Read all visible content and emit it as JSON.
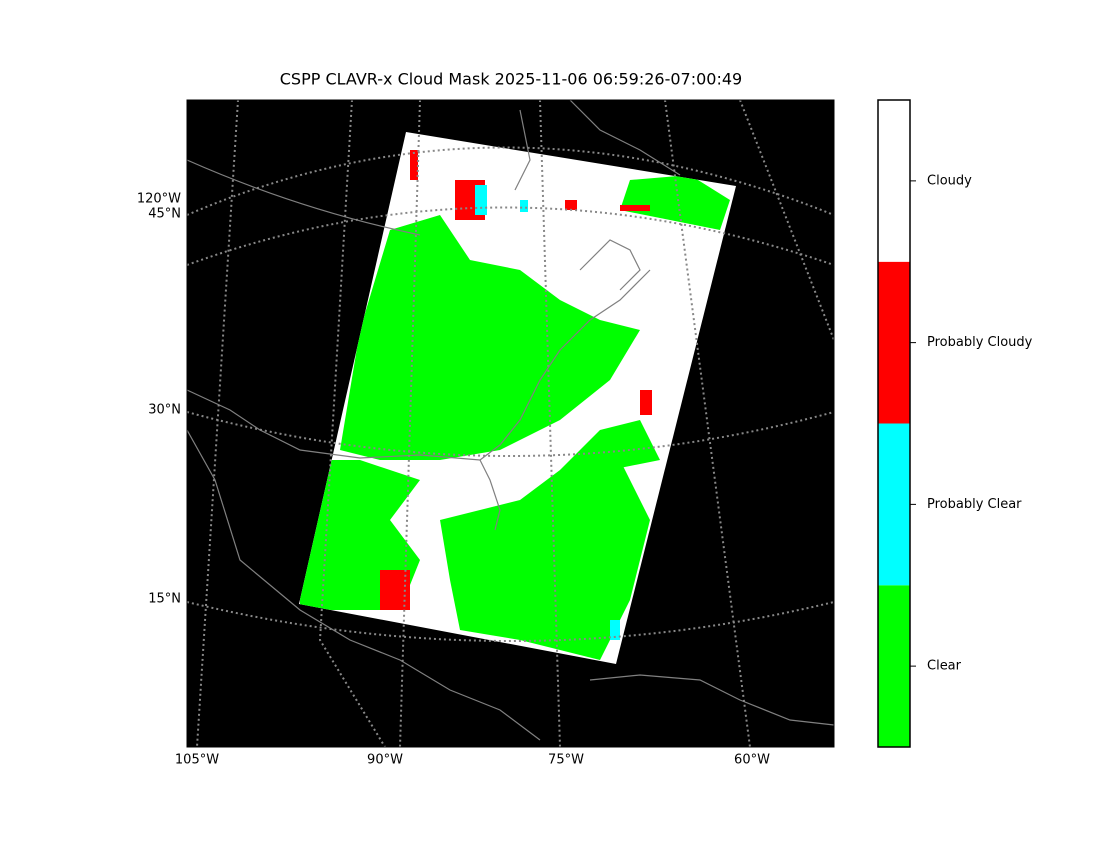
{
  "title": "CSPP CLAVR-x Cloud Mask 2025-11-06 06:59:26-07:00:49",
  "map": {
    "lon_labels": [
      "105°W",
      "90°W",
      "75°W",
      "60°W"
    ],
    "lat_labels": [
      "120°W",
      "45°N",
      "30°N",
      "15°N"
    ]
  },
  "colorbar": {
    "classes": [
      {
        "label": "Clear",
        "color": "#00ff00"
      },
      {
        "label": "Probably Clear",
        "color": "#00ffff"
      },
      {
        "label": "Probably Cloudy",
        "color": "#ff0000"
      },
      {
        "label": "Cloudy",
        "color": "#ffffff"
      }
    ]
  }
}
